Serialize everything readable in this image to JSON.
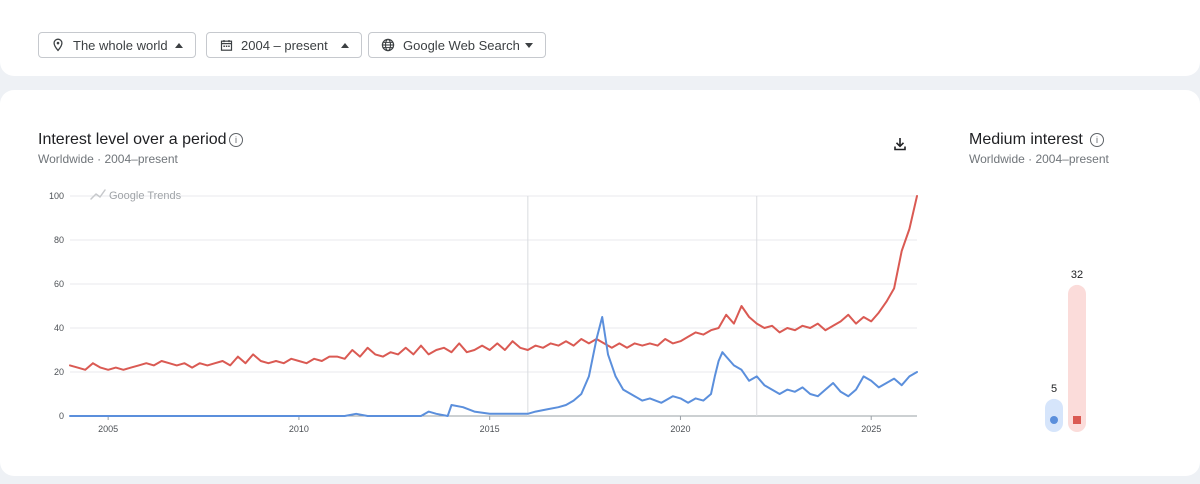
{
  "filters": [
    {
      "label": "The whole world",
      "icon": "location-pin-icon",
      "caret": "up"
    },
    {
      "label": "2004 – present",
      "icon": "calendar-icon",
      "caret": "up"
    },
    {
      "label": "Google Web Search",
      "icon": "globe-icon",
      "caret": "down"
    }
  ],
  "main_chart": {
    "title": "Interest level over a period",
    "subtitle": "Worldwide · 2004–present",
    "watermark": "Google Trends",
    "download_icon": "download-icon",
    "info_icon": "info-icon"
  },
  "side_chart": {
    "title": "Medium interest",
    "subtitle": "Worldwide · 2004–present",
    "info_icon": "info-icon"
  },
  "colors": {
    "blue": "#5b8fdc",
    "red": "#da5a53",
    "grid": "#e8eaed",
    "tick_text": "#4d5156",
    "pale_blue": "#d6e5fb",
    "pale_red": "#fbdcda"
  },
  "chart_data": [
    {
      "type": "line",
      "title": "",
      "xlabel": "",
      "ylabel": "",
      "xlim": [
        2004.0,
        2026.2
      ],
      "ylim": [
        0,
        100
      ],
      "x_ticks": [
        "2005",
        "2010",
        "2015",
        "2020",
        "2025"
      ],
      "y_ticks": [
        "0",
        "20",
        "40",
        "60",
        "80",
        "100"
      ],
      "vertical_markers": [
        2016.0,
        2022.0
      ],
      "grid": true,
      "legend": "none",
      "series": [
        {
          "color": "#da5a53",
          "points": [
            [
              2004.0,
              23
            ],
            [
              2004.2,
              22
            ],
            [
              2004.4,
              21
            ],
            [
              2004.6,
              24
            ],
            [
              2004.8,
              22
            ],
            [
              2005.0,
              21
            ],
            [
              2005.2,
              22
            ],
            [
              2005.4,
              21
            ],
            [
              2005.6,
              22
            ],
            [
              2005.8,
              23
            ],
            [
              2006.0,
              24
            ],
            [
              2006.2,
              23
            ],
            [
              2006.4,
              25
            ],
            [
              2006.6,
              24
            ],
            [
              2006.8,
              23
            ],
            [
              2007.0,
              24
            ],
            [
              2007.2,
              22
            ],
            [
              2007.4,
              24
            ],
            [
              2007.6,
              23
            ],
            [
              2007.8,
              24
            ],
            [
              2008.0,
              25
            ],
            [
              2008.2,
              23
            ],
            [
              2008.4,
              27
            ],
            [
              2008.6,
              24
            ],
            [
              2008.8,
              28
            ],
            [
              2009.0,
              25
            ],
            [
              2009.2,
              24
            ],
            [
              2009.4,
              25
            ],
            [
              2009.6,
              24
            ],
            [
              2009.8,
              26
            ],
            [
              2010.0,
              25
            ],
            [
              2010.2,
              24
            ],
            [
              2010.4,
              26
            ],
            [
              2010.6,
              25
            ],
            [
              2010.8,
              27
            ],
            [
              2011.0,
              27
            ],
            [
              2011.2,
              26
            ],
            [
              2011.4,
              30
            ],
            [
              2011.6,
              27
            ],
            [
              2011.8,
              31
            ],
            [
              2012.0,
              28
            ],
            [
              2012.2,
              27
            ],
            [
              2012.4,
              29
            ],
            [
              2012.6,
              28
            ],
            [
              2012.8,
              31
            ],
            [
              2013.0,
              28
            ],
            [
              2013.2,
              32
            ],
            [
              2013.4,
              28
            ],
            [
              2013.6,
              30
            ],
            [
              2013.8,
              31
            ],
            [
              2014.0,
              29
            ],
            [
              2014.2,
              33
            ],
            [
              2014.4,
              29
            ],
            [
              2014.6,
              30
            ],
            [
              2014.8,
              32
            ],
            [
              2015.0,
              30
            ],
            [
              2015.2,
              33
            ],
            [
              2015.4,
              30
            ],
            [
              2015.6,
              34
            ],
            [
              2015.8,
              31
            ],
            [
              2016.0,
              30
            ],
            [
              2016.2,
              32
            ],
            [
              2016.4,
              31
            ],
            [
              2016.6,
              33
            ],
            [
              2016.8,
              32
            ],
            [
              2017.0,
              34
            ],
            [
              2017.2,
              32
            ],
            [
              2017.4,
              35
            ],
            [
              2017.6,
              33
            ],
            [
              2017.8,
              35
            ],
            [
              2018.0,
              33
            ],
            [
              2018.2,
              31
            ],
            [
              2018.4,
              33
            ],
            [
              2018.6,
              31
            ],
            [
              2018.8,
              33
            ],
            [
              2019.0,
              32
            ],
            [
              2019.2,
              33
            ],
            [
              2019.4,
              32
            ],
            [
              2019.6,
              35
            ],
            [
              2019.8,
              33
            ],
            [
              2020.0,
              34
            ],
            [
              2020.2,
              36
            ],
            [
              2020.4,
              38
            ],
            [
              2020.6,
              37
            ],
            [
              2020.8,
              39
            ],
            [
              2021.0,
              40
            ],
            [
              2021.2,
              46
            ],
            [
              2021.4,
              42
            ],
            [
              2021.6,
              50
            ],
            [
              2021.8,
              45
            ],
            [
              2022.0,
              42
            ],
            [
              2022.2,
              40
            ],
            [
              2022.4,
              41
            ],
            [
              2022.6,
              38
            ],
            [
              2022.8,
              40
            ],
            [
              2023.0,
              39
            ],
            [
              2023.2,
              41
            ],
            [
              2023.4,
              40
            ],
            [
              2023.6,
              42
            ],
            [
              2023.8,
              39
            ],
            [
              2024.0,
              41
            ],
            [
              2024.2,
              43
            ],
            [
              2024.4,
              46
            ],
            [
              2024.6,
              42
            ],
            [
              2024.8,
              45
            ],
            [
              2025.0,
              43
            ],
            [
              2025.2,
              47
            ],
            [
              2025.4,
              52
            ],
            [
              2025.6,
              58
            ],
            [
              2025.8,
              75
            ],
            [
              2026.0,
              85
            ],
            [
              2026.2,
              100
            ]
          ]
        },
        {
          "color": "#5b8fdc",
          "points": [
            [
              2004.0,
              0
            ],
            [
              2011.2,
              0
            ],
            [
              2011.5,
              1
            ],
            [
              2011.8,
              0
            ],
            [
              2013.2,
              0
            ],
            [
              2013.4,
              2
            ],
            [
              2013.6,
              1
            ],
            [
              2013.9,
              0
            ],
            [
              2014.0,
              5
            ],
            [
              2014.3,
              4
            ],
            [
              2014.6,
              2
            ],
            [
              2015.0,
              1
            ],
            [
              2016.0,
              1
            ],
            [
              2016.2,
              2
            ],
            [
              2016.5,
              3
            ],
            [
              2016.8,
              4
            ],
            [
              2017.0,
              5
            ],
            [
              2017.2,
              7
            ],
            [
              2017.4,
              10
            ],
            [
              2017.6,
              18
            ],
            [
              2017.8,
              35
            ],
            [
              2017.95,
              45
            ],
            [
              2018.1,
              28
            ],
            [
              2018.3,
              18
            ],
            [
              2018.5,
              12
            ],
            [
              2018.8,
              9
            ],
            [
              2019.0,
              7
            ],
            [
              2019.2,
              8
            ],
            [
              2019.5,
              6
            ],
            [
              2019.8,
              9
            ],
            [
              2020.0,
              8
            ],
            [
              2020.2,
              6
            ],
            [
              2020.4,
              8
            ],
            [
              2020.6,
              7
            ],
            [
              2020.8,
              10
            ],
            [
              2020.9,
              18
            ],
            [
              2021.0,
              25
            ],
            [
              2021.1,
              29
            ],
            [
              2021.2,
              27
            ],
            [
              2021.4,
              23
            ],
            [
              2021.6,
              21
            ],
            [
              2021.8,
              16
            ],
            [
              2022.0,
              18
            ],
            [
              2022.2,
              14
            ],
            [
              2022.4,
              12
            ],
            [
              2022.6,
              10
            ],
            [
              2022.8,
              12
            ],
            [
              2023.0,
              11
            ],
            [
              2023.2,
              13
            ],
            [
              2023.4,
              10
            ],
            [
              2023.6,
              9
            ],
            [
              2023.8,
              12
            ],
            [
              2024.0,
              15
            ],
            [
              2024.2,
              11
            ],
            [
              2024.4,
              9
            ],
            [
              2024.6,
              12
            ],
            [
              2024.8,
              18
            ],
            [
              2025.0,
              16
            ],
            [
              2025.2,
              13
            ],
            [
              2025.4,
              15
            ],
            [
              2025.6,
              17
            ],
            [
              2025.8,
              14
            ],
            [
              2026.0,
              18
            ],
            [
              2026.2,
              20
            ]
          ]
        }
      ]
    },
    {
      "type": "bar",
      "title": "",
      "xlabel": "",
      "ylabel": "",
      "ylim": [
        0,
        45
      ],
      "values": [
        5,
        32
      ],
      "colors": [
        "#5b8fdc",
        "#da5a53"
      ],
      "labels": [
        "5",
        "32"
      ],
      "legend": "none"
    }
  ]
}
